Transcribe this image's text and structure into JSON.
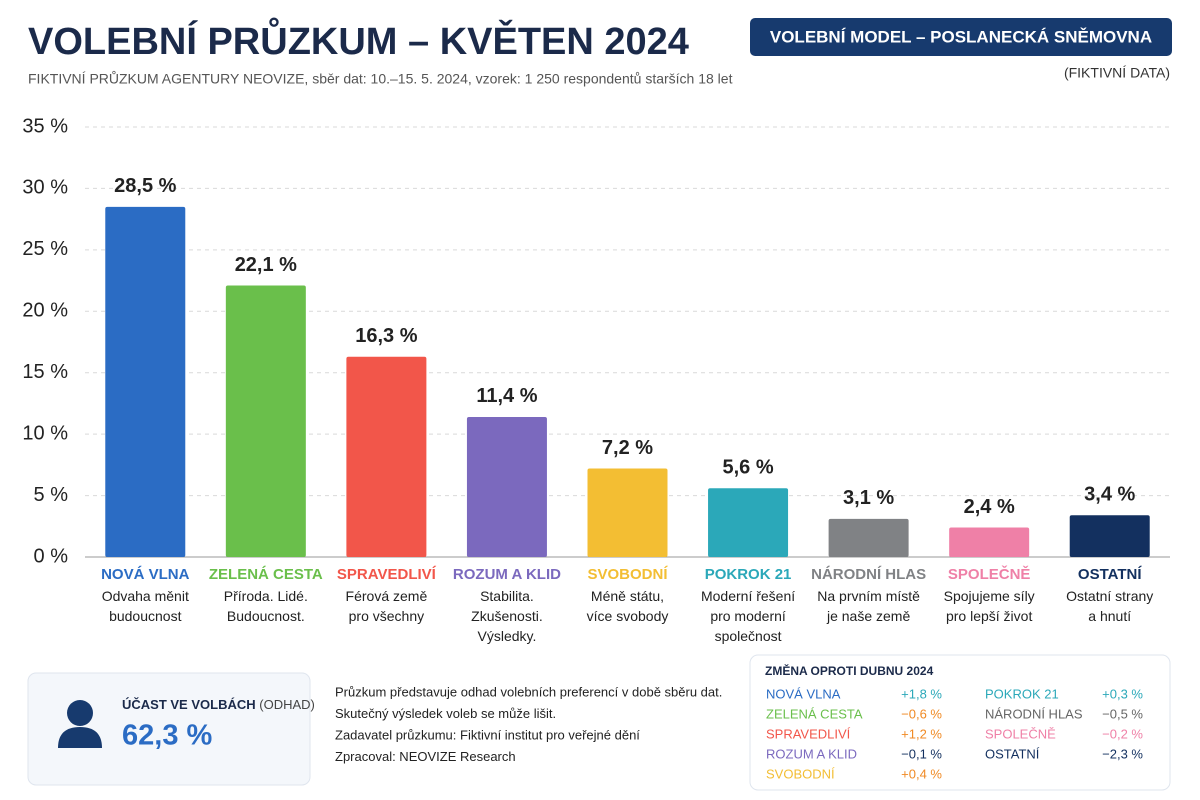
{
  "chart_data": {
    "type": "bar",
    "title": "VOLEBNÍ PRŮZKUM – KVĚTEN 2024",
    "subtitle": "FIKTIVNÍ PRŮZKUM AGENTURY NEOVIZE, sběr dat: 10.–15. 5. 2024, vzorek: 1 250 respondentů starších 18 let",
    "categories": [
      "NOVÁ VLNA",
      "ZELENÁ CESTA",
      "SPRAVEDLIVÍ",
      "ROZUM A KLID",
      "SVOBODNÍ",
      "POKROK 21",
      "NÁRODNÍ HLAS",
      "SPOLEČNĚ",
      "OSTATNÍ"
    ],
    "slogans": [
      [
        "Odvaha měnit",
        "budoucnost"
      ],
      [
        "Příroda. Lidé.",
        "Budoucnost."
      ],
      [
        "Férová země",
        "pro všechny"
      ],
      [
        "Stabilita.",
        "Zkušenosti.",
        "Výsledky."
      ],
      [
        "Méně státu,",
        "více svobody"
      ],
      [
        "Moderní řešení",
        "pro moderní",
        "společnost"
      ],
      [
        "Na prvním místě",
        "je naše země"
      ],
      [
        "Spojujeme síly",
        "pro lepší život"
      ],
      [
        "Ostatní strany",
        "a hnutí"
      ]
    ],
    "values": [
      28.5,
      22.1,
      16.3,
      11.4,
      7.2,
      5.6,
      3.1,
      2.4,
      3.4
    ],
    "value_labels": [
      "28,5 %",
      "22,1 %",
      "16,3 %",
      "11,4 %",
      "7,2 %",
      "5,6 %",
      "3,1 %",
      "2,4 %",
      "3,4 %"
    ],
    "colors": [
      "#2b6cc4",
      "#6abf4b",
      "#f2564a",
      "#7b69be",
      "#f3be33",
      "#2ba8b9",
      "#808285",
      "#ef80a7",
      "#13305f"
    ],
    "ylim": [
      0,
      35
    ],
    "yticks": [
      {
        "value": 0,
        "label": "0 %"
      },
      {
        "value": 5,
        "label": "5 %"
      },
      {
        "value": 10,
        "label": "10 %"
      },
      {
        "value": 15,
        "label": "15 %"
      },
      {
        "value": 20,
        "label": "20 %"
      },
      {
        "value": 25,
        "label": "25 %"
      },
      {
        "value": 30,
        "label": "30 %"
      },
      {
        "value": 35,
        "label": "35 %"
      }
    ],
    "grid": true
  },
  "badge": {
    "title": "VOLEBNÍ MODEL – POSLANECKÁ SNĚMOVNA",
    "note": "(FIKTIVNÍ DATA)"
  },
  "turnout": {
    "label": "ÚČAST VE VOLBÁCH",
    "qualifier": "(ODHAD)",
    "value": "62,3 %"
  },
  "notes": [
    "Průzkum představuje odhad volebních preferencí v době sběru dat.",
    "Skutečný výsledek voleb se může lišit.",
    "Zadavatel průzkumu: Fiktivní institut pro veřejné dění",
    "Zpracoval: NEOVIZE Research"
  ],
  "changes": {
    "title": "ZMĚNA OPROTI DUBNU 2024",
    "rows": [
      {
        "name": "NOVÁ VLNA",
        "value": "+1,8 %",
        "color": "#2b6cc4",
        "value_color": "#2ba8b9"
      },
      {
        "name": "ZELENÁ CESTA",
        "value": "−0,6 %",
        "color": "#6abf4b",
        "value_color": "#f08a24"
      },
      {
        "name": "SPRAVEDLIVÍ",
        "value": "+1,2 %",
        "color": "#f2564a",
        "value_color": "#f08a24"
      },
      {
        "name": "ROZUM A KLID",
        "value": "−0,1 %",
        "color": "#7b69be",
        "value_color": "#13305f"
      },
      {
        "name": "SVOBODNÍ",
        "value": "+0,4 %",
        "color": "#f3be33",
        "value_color": "#f08a24"
      },
      {
        "name": "POKROK 21",
        "value": "+0,3 %",
        "color": "#2ba8b9",
        "value_color": "#2ba8b9"
      },
      {
        "name": "NÁRODNÍ HLAS",
        "value": "−0,5 %",
        "color": "#666666",
        "value_color": "#666666"
      },
      {
        "name": "SPOLEČNĚ",
        "value": "−0,2 %",
        "color": "#ef80a7",
        "value_color": "#ef80a7"
      },
      {
        "name": "OSTATNÍ",
        "value": "−2,3 %",
        "color": "#13305f",
        "value_color": "#13305f"
      }
    ]
  }
}
